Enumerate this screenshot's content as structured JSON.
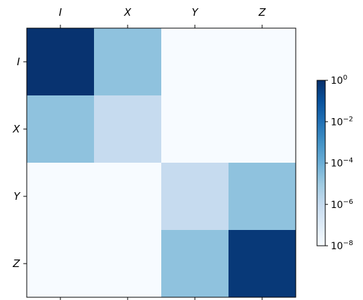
{
  "chart_data": {
    "type": "heatmap",
    "title": "",
    "xlabel": "",
    "ylabel": "",
    "x_categories": [
      "I",
      "X",
      "Y",
      "Z"
    ],
    "y_categories": [
      "I",
      "X",
      "Y",
      "Z"
    ],
    "x_ticks_position": "top",
    "grid": false,
    "colormap": "Blues",
    "color_scale": "log",
    "color_range": [
      1e-08,
      1
    ],
    "colorbar": {
      "placement": "right",
      "ticks": [
        {
          "value": 1,
          "base": "10",
          "exp": "0"
        },
        {
          "value": 0.01,
          "base": "10",
          "exp": "−2"
        },
        {
          "value": 0.0001,
          "base": "10",
          "exp": "−4"
        },
        {
          "value": 1e-06,
          "base": "10",
          "exp": "−6"
        },
        {
          "value": 1e-08,
          "base": "10",
          "exp": "−8"
        }
      ]
    },
    "values": [
      [
        0.8,
        2e-05,
        1e-08,
        1e-08
      ],
      [
        2e-05,
        1e-06,
        1e-08,
        1e-08
      ],
      [
        1e-08,
        1e-08,
        1e-06,
        2e-05
      ],
      [
        1e-08,
        1e-08,
        2e-05,
        0.55
      ]
    ]
  }
}
